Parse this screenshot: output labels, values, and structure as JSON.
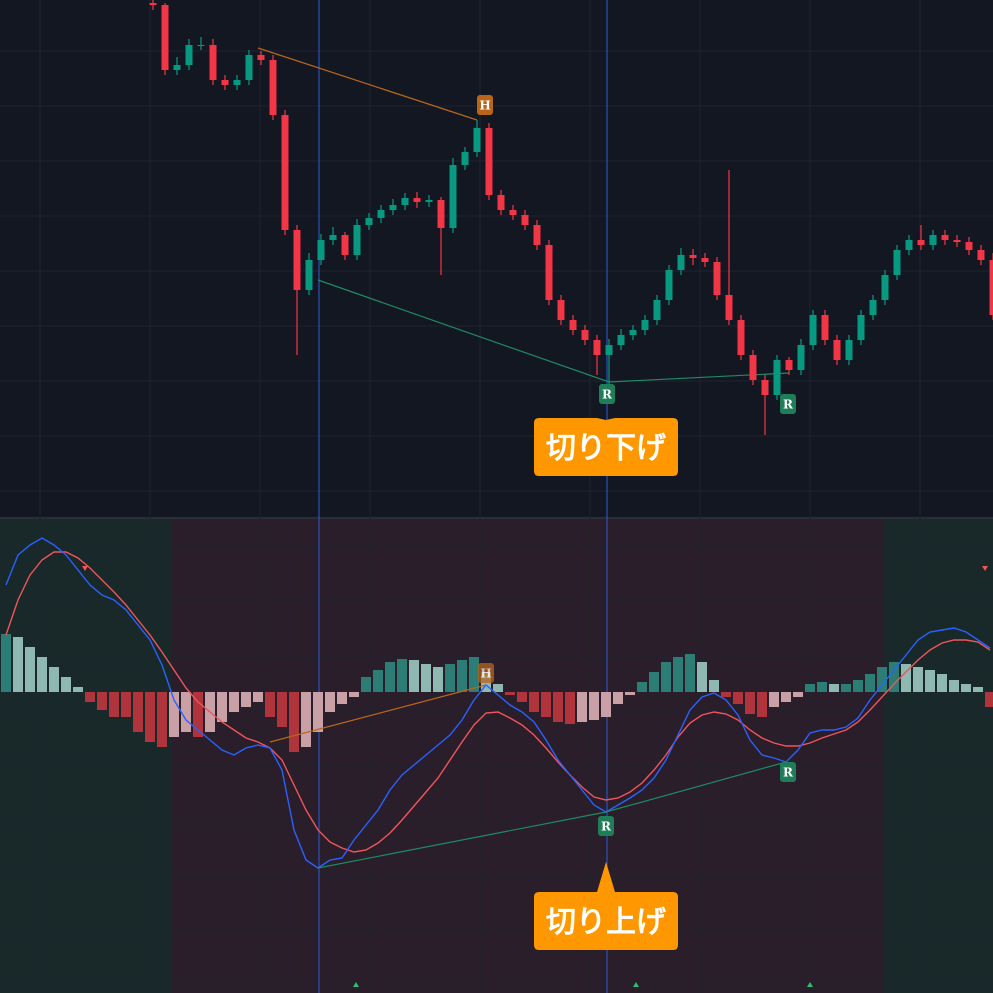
{
  "chart_data": [
    {
      "type": "candlestick",
      "open": [
        512,
        510,
        445,
        450,
        470,
        470,
        435,
        430,
        435,
        460,
        455,
        400,
        285,
        225,
        255,
        275,
        280,
        260,
        290,
        297,
        305,
        310,
        317,
        313,
        315,
        287,
        350,
        363,
        387,
        320,
        305,
        300,
        290,
        270,
        215,
        195,
        185,
        175,
        160,
        170,
        180,
        185,
        195,
        215,
        245,
        260,
        257,
        253,
        220,
        195,
        160,
        135,
        120,
        155,
        145,
        170,
        200,
        175,
        155,
        175,
        200,
        215,
        240,
        265,
        275,
        270,
        280,
        275,
        273,
        265,
        255
      ],
      "high": [
        515,
        512,
        458,
        476,
        478,
        476,
        440,
        440,
        465,
        464,
        460,
        405,
        290,
        262,
        281,
        288,
        283,
        296,
        302,
        310,
        316,
        322,
        323,
        320,
        318,
        357,
        368,
        395,
        392,
        325,
        310,
        305,
        295,
        275,
        220,
        200,
        190,
        180,
        176,
        186,
        190,
        200,
        220,
        250,
        267,
        266,
        262,
        258,
        345,
        200,
        165,
        140,
        160,
        158,
        176,
        205,
        205,
        180,
        180,
        205,
        220,
        245,
        270,
        280,
        290,
        285,
        285,
        280,
        278,
        270,
        262
      ],
      "low": [
        505,
        440,
        440,
        445,
        465,
        430,
        425,
        425,
        430,
        450,
        395,
        280,
        160,
        220,
        250,
        270,
        255,
        255,
        285,
        292,
        300,
        305,
        307,
        308,
        240,
        282,
        345,
        358,
        315,
        300,
        295,
        285,
        265,
        210,
        190,
        180,
        170,
        140,
        130,
        165,
        175,
        180,
        190,
        210,
        240,
        250,
        248,
        215,
        190,
        155,
        130,
        80,
        115,
        140,
        140,
        165,
        170,
        150,
        150,
        170,
        195,
        210,
        235,
        260,
        265,
        265,
        270,
        268,
        260,
        250,
        195
      ],
      "close": [
        510,
        445,
        450,
        470,
        470,
        435,
        430,
        435,
        460,
        455,
        400,
        285,
        225,
        255,
        275,
        280,
        260,
        290,
        297,
        305,
        310,
        317,
        313,
        315,
        287,
        350,
        363,
        387,
        320,
        305,
        300,
        290,
        270,
        215,
        195,
        185,
        175,
        160,
        170,
        180,
        185,
        195,
        215,
        245,
        260,
        257,
        253,
        220,
        195,
        160,
        135,
        120,
        155,
        145,
        170,
        200,
        175,
        155,
        175,
        200,
        215,
        240,
        265,
        275,
        270,
        280,
        275,
        273,
        265,
        255,
        200
      ],
      "ylim": [
        0,
        515
      ],
      "up_color": "#089981",
      "down_color": "#f23645",
      "annotations": [
        "H",
        "R",
        "R",
        "切り下げ"
      ]
    },
    {
      "type": "macd",
      "macd": {
        "color": "#2962ff",
        "values": [
          107,
          137,
          147,
          154,
          147,
          137,
          122,
          107,
          97,
          92,
          82,
          67,
          52,
          27,
          -8,
          -28,
          -38,
          -48,
          -58,
          -63,
          -56,
          -53,
          -56,
          -78,
          -138,
          -168,
          -176,
          -168,
          -166,
          -148,
          -133,
          -118,
          -98,
          -83,
          -73,
          -63,
          -53,
          -43,
          -28,
          -8,
          7,
          -3,
          -13,
          -20,
          -30,
          -48,
          -68,
          -83,
          -98,
          -113,
          -120,
          -113,
          -106,
          -98,
          -86,
          -68,
          -43,
          -18,
          -5,
          -1,
          -8,
          -23,
          -48,
          -63,
          -66,
          -70,
          -58,
          -41,
          -38,
          -38,
          -35,
          -26,
          -8,
          7,
          22,
          37,
          52,
          60,
          62,
          64,
          60,
          52,
          44
        ]
      },
      "signal": {
        "color": "#f0555a",
        "values": [
          57,
          92,
          117,
          132,
          140,
          140,
          134,
          124,
          112,
          100,
          87,
          72,
          57,
          40,
          22,
          4,
          -10,
          -20,
          -30,
          -38,
          -46,
          -50,
          -56,
          -68,
          -93,
          -118,
          -138,
          -150,
          -156,
          -160,
          -158,
          -151,
          -141,
          -128,
          -114,
          -100,
          -86,
          -68,
          -50,
          -33,
          -21,
          -20,
          -26,
          -33,
          -43,
          -56,
          -70,
          -83,
          -95,
          -105,
          -108,
          -106,
          -100,
          -91,
          -78,
          -63,
          -45,
          -31,
          -23,
          -20,
          -22,
          -28,
          -38,
          -46,
          -51,
          -54,
          -54,
          -51,
          -46,
          -42,
          -38,
          -30,
          -18,
          -5,
          8,
          20,
          32,
          42,
          49,
          52,
          52,
          50,
          42
        ]
      },
      "histogram": {
        "colors": [
          "#2b7d75",
          "#8fb8b3",
          "#b0343c",
          "#c9a0a6"
        ],
        "values": [
          58,
          55,
          45,
          35,
          25,
          15,
          5,
          -10,
          -18,
          -25,
          -25,
          -40,
          -50,
          -55,
          -45,
          -40,
          -45,
          -40,
          -30,
          -20,
          -15,
          -10,
          -25,
          -35,
          -60,
          -55,
          -40,
          -20,
          -12,
          -5,
          15,
          22,
          30,
          33,
          32,
          28,
          25,
          28,
          32,
          35,
          20,
          8,
          -3,
          -10,
          -20,
          -25,
          -30,
          -32,
          -30,
          -28,
          -25,
          -12,
          -3,
          10,
          20,
          30,
          35,
          38,
          30,
          12,
          -5,
          -12,
          -22,
          -25,
          -15,
          -10,
          -5,
          8,
          10,
          8,
          8,
          12,
          18,
          25,
          30,
          28,
          25,
          22,
          18,
          12,
          8,
          5,
          -15
        ]
      },
      "ylim": [
        -301,
        173
      ],
      "annotations": [
        "H",
        "R",
        "R",
        "切り上げ"
      ]
    }
  ]
}
